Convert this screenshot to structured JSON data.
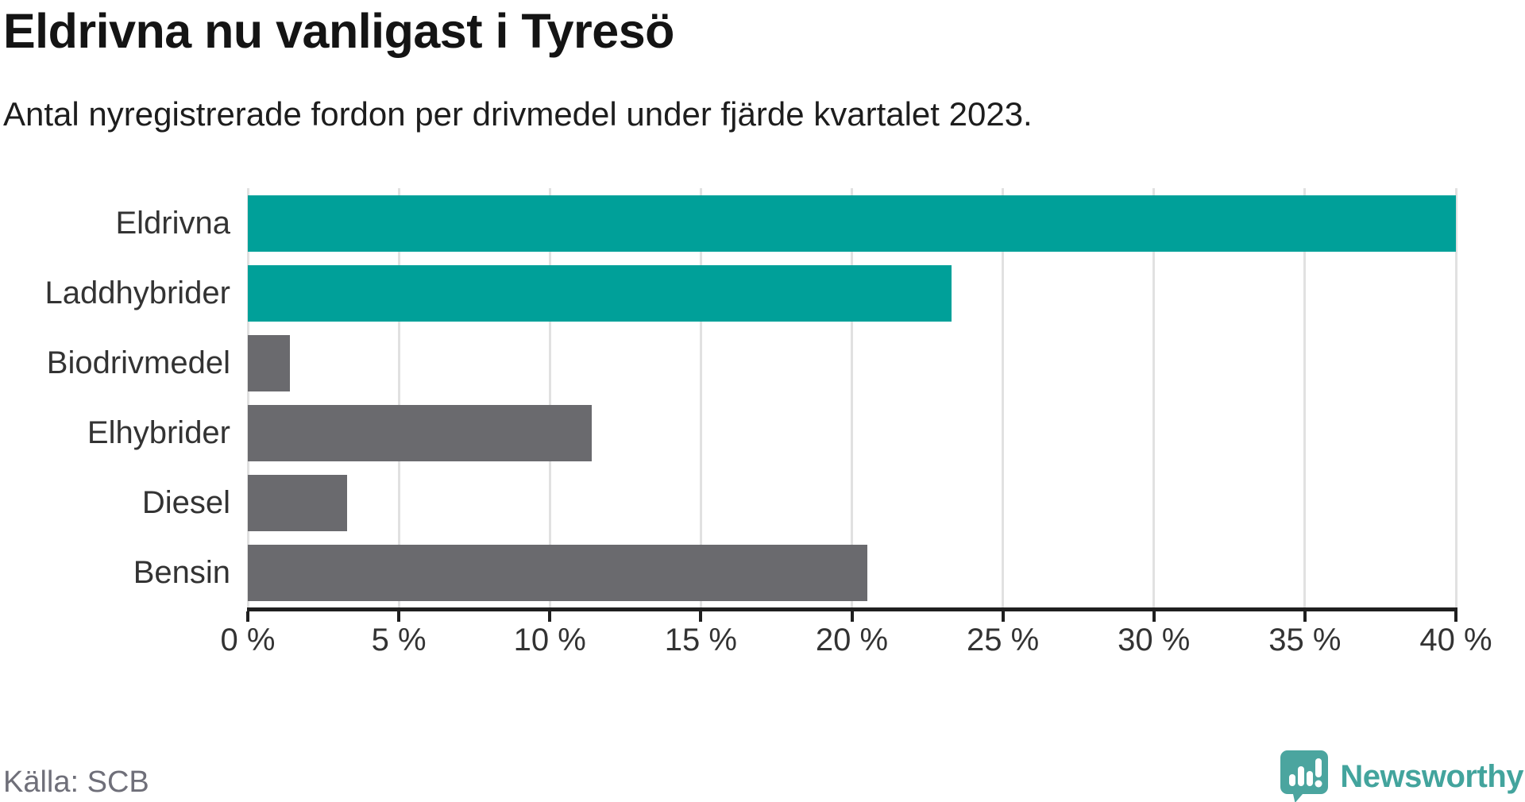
{
  "header": {
    "title": "Eldrivna nu vanligast i Tyresö",
    "subtitle": "Antal nyregistrerade fordon per drivmedel under fjärde kvartalet 2023."
  },
  "footer": {
    "source": "Källa: SCB",
    "brand_name": "Newsworthy"
  },
  "colors": {
    "highlight_teal": "#00a099",
    "neutral_gray": "#6a6a6e",
    "gridline": "#e1e1e1",
    "axis": "#1f1f1f",
    "label_text": "#333333",
    "title_text": "#141414",
    "source_text": "#6f6f79",
    "brand_teal": "#4ba59f",
    "brand_text_teal": "#43a49d"
  },
  "chart_data": {
    "type": "bar",
    "orientation": "horizontal",
    "title": "Eldrivna nu vanligast i Tyresö",
    "subtitle": "Antal nyregistrerade fordon per drivmedel under fjärde kvartalet 2023.",
    "categories": [
      "Eldrivna",
      "Laddhybrider",
      "Biodrivmedel",
      "Elhybrider",
      "Diesel",
      "Bensin"
    ],
    "values": [
      40.0,
      23.3,
      1.4,
      11.4,
      3.3,
      20.5
    ],
    "unit": "%",
    "bar_colors": [
      "#00a099",
      "#00a099",
      "#6a6a6e",
      "#6a6a6e",
      "#6a6a6e",
      "#6a6a6e"
    ],
    "xlim": [
      0,
      40
    ],
    "x_ticks": [
      0,
      5,
      10,
      15,
      20,
      25,
      30,
      35,
      40
    ],
    "x_tick_labels": [
      "0 %",
      "5 %",
      "10 %",
      "15 %",
      "20 %",
      "25 %",
      "30 %",
      "35 %",
      "40 %"
    ],
    "grid": true,
    "legend": false,
    "source": "Källa: SCB"
  }
}
